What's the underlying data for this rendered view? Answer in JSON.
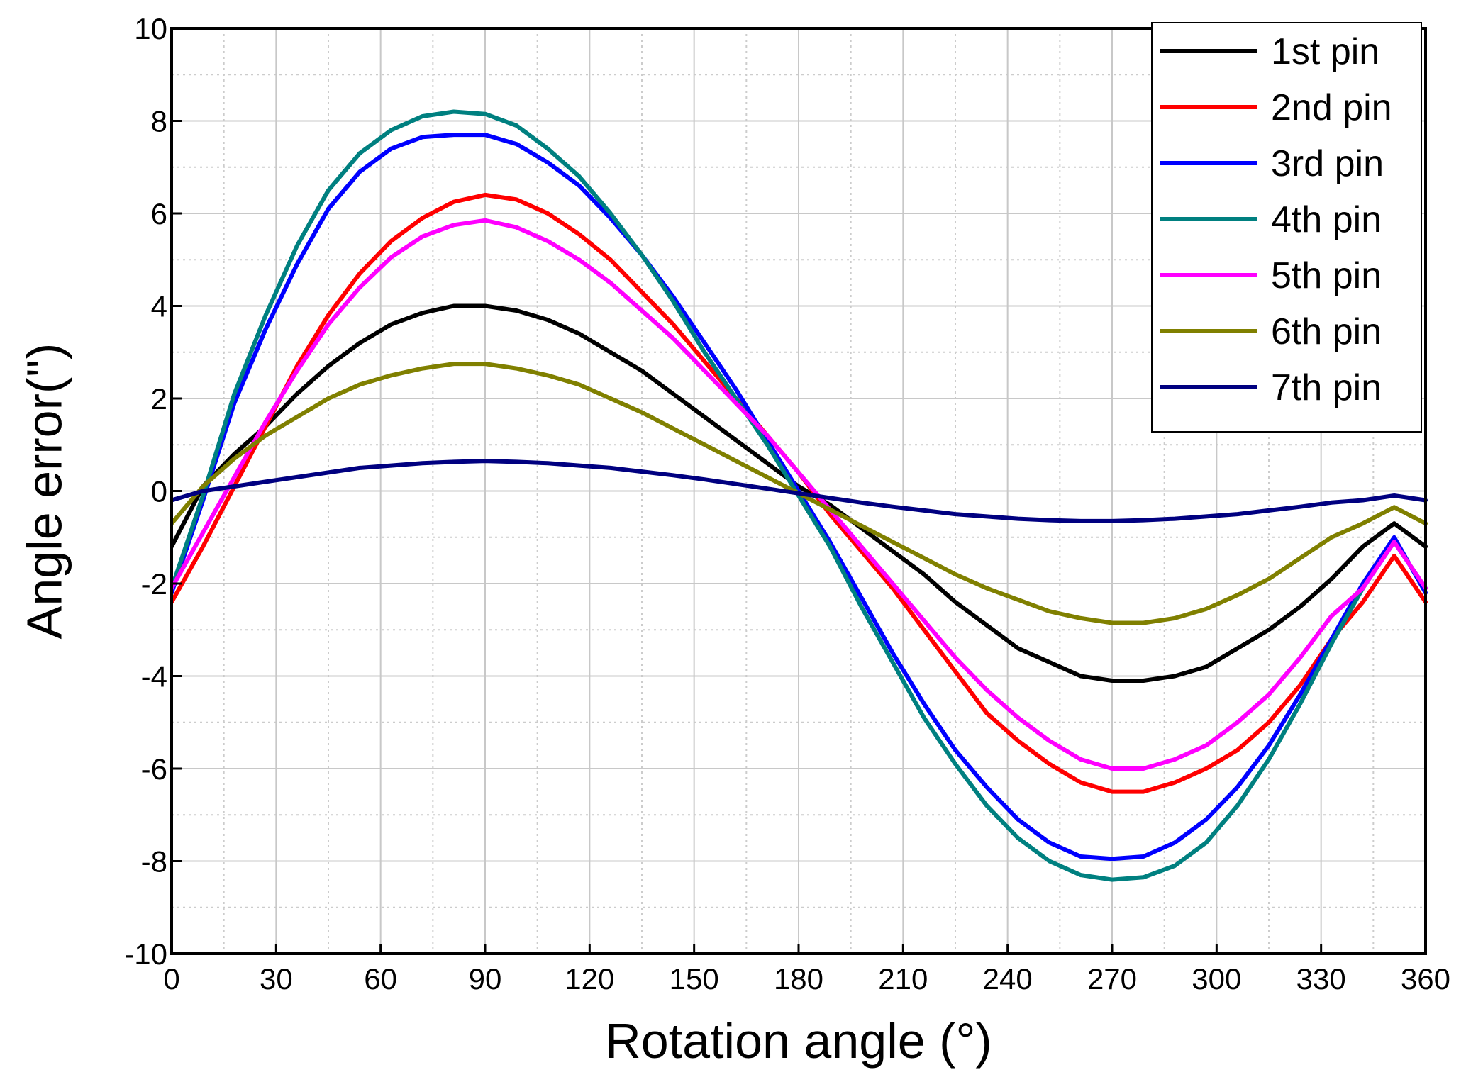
{
  "chart_data": {
    "type": "line",
    "title": "",
    "xlabel": "Rotation angle (°)",
    "ylabel": "Angle error(\")",
    "xlim": [
      0,
      360
    ],
    "ylim": [
      -10,
      10
    ],
    "xticks": [
      0,
      30,
      60,
      90,
      120,
      150,
      180,
      210,
      240,
      270,
      300,
      330,
      360
    ],
    "yticks": [
      -10,
      -8,
      -6,
      -4,
      -2,
      0,
      2,
      4,
      6,
      8,
      10
    ],
    "xtick_labels": [
      "0",
      "30",
      "60",
      "90",
      "120",
      "150",
      "180",
      "210",
      "240",
      "270",
      "300",
      "330",
      "360"
    ],
    "ytick_labels": [
      "-10",
      "-8",
      "-6",
      "-4",
      "-2",
      "0",
      "2",
      "4",
      "6",
      "8",
      "10"
    ],
    "grid": true,
    "legend_position": "top-right",
    "x": [
      0,
      9,
      18,
      27,
      36,
      45,
      54,
      63,
      72,
      81,
      90,
      99,
      108,
      117,
      126,
      135,
      144,
      153,
      162,
      171,
      180,
      189,
      198,
      207,
      216,
      225,
      234,
      243,
      252,
      261,
      270,
      279,
      288,
      297,
      306,
      315,
      324,
      333,
      342,
      351,
      360
    ],
    "series": [
      {
        "name": "1st pin",
        "color": "#000000",
        "values": [
          -1.2,
          0.1,
          0.8,
          1.4,
          2.1,
          2.7,
          3.2,
          3.6,
          3.85,
          4.0,
          4.0,
          3.9,
          3.7,
          3.4,
          3.0,
          2.6,
          2.1,
          1.6,
          1.1,
          0.6,
          0.1,
          -0.3,
          -0.8,
          -1.3,
          -1.8,
          -2.4,
          -2.9,
          -3.4,
          -3.7,
          -4.0,
          -4.1,
          -4.1,
          -4.0,
          -3.8,
          -3.4,
          -3.0,
          -2.5,
          -1.9,
          -1.2,
          -0.7,
          -1.2
        ]
      },
      {
        "name": "2nd pin",
        "color": "#ff0000",
        "values": [
          -2.4,
          -1.2,
          0.1,
          1.4,
          2.7,
          3.8,
          4.7,
          5.4,
          5.9,
          6.25,
          6.4,
          6.3,
          6.0,
          5.55,
          5.0,
          4.3,
          3.6,
          2.8,
          2.0,
          1.2,
          0.4,
          -0.5,
          -1.3,
          -2.1,
          -3.0,
          -3.9,
          -4.8,
          -5.4,
          -5.9,
          -6.3,
          -6.5,
          -6.5,
          -6.3,
          -6.0,
          -5.6,
          -5.0,
          -4.2,
          -3.2,
          -2.4,
          -1.4,
          -2.4
        ]
      },
      {
        "name": "3rd pin",
        "color": "#0000ff",
        "values": [
          -2.2,
          -0.2,
          1.9,
          3.5,
          4.9,
          6.1,
          6.9,
          7.4,
          7.65,
          7.7,
          7.7,
          7.5,
          7.1,
          6.6,
          5.9,
          5.1,
          4.2,
          3.2,
          2.2,
          1.1,
          0.0,
          -1.1,
          -2.3,
          -3.5,
          -4.6,
          -5.6,
          -6.4,
          -7.1,
          -7.6,
          -7.9,
          -7.95,
          -7.9,
          -7.6,
          -7.1,
          -6.4,
          -5.5,
          -4.4,
          -3.2,
          -2.0,
          -1.0,
          -2.2
        ]
      },
      {
        "name": "4th pin",
        "color": "#008080",
        "values": [
          -2.1,
          -0.1,
          2.1,
          3.8,
          5.3,
          6.5,
          7.3,
          7.8,
          8.1,
          8.2,
          8.15,
          7.9,
          7.4,
          6.8,
          6.0,
          5.1,
          4.1,
          3.0,
          2.0,
          1.0,
          -0.1,
          -1.2,
          -2.5,
          -3.7,
          -4.9,
          -5.9,
          -6.8,
          -7.5,
          -8.0,
          -8.3,
          -8.4,
          -8.35,
          -8.1,
          -7.6,
          -6.8,
          -5.8,
          -4.6,
          -3.3,
          -2.1,
          -1.1,
          -2.1
        ]
      },
      {
        "name": "5th pin",
        "color": "#ff00ff",
        "values": [
          -2.1,
          -0.9,
          0.3,
          1.5,
          2.6,
          3.6,
          4.4,
          5.05,
          5.5,
          5.75,
          5.85,
          5.7,
          5.4,
          5.0,
          4.5,
          3.9,
          3.3,
          2.6,
          1.9,
          1.2,
          0.4,
          -0.4,
          -1.2,
          -2.0,
          -2.8,
          -3.6,
          -4.3,
          -4.9,
          -5.4,
          -5.8,
          -6.0,
          -6.0,
          -5.8,
          -5.5,
          -5.0,
          -4.4,
          -3.6,
          -2.7,
          -2.1,
          -1.1,
          -2.1
        ]
      },
      {
        "name": "6th pin",
        "color": "#808000",
        "values": [
          -0.7,
          0.1,
          0.7,
          1.2,
          1.6,
          2.0,
          2.3,
          2.5,
          2.65,
          2.75,
          2.75,
          2.65,
          2.5,
          2.3,
          2.0,
          1.7,
          1.35,
          1.0,
          0.65,
          0.3,
          -0.05,
          -0.4,
          -0.75,
          -1.1,
          -1.45,
          -1.8,
          -2.1,
          -2.35,
          -2.6,
          -2.75,
          -2.85,
          -2.85,
          -2.75,
          -2.55,
          -2.25,
          -1.9,
          -1.45,
          -1.0,
          -0.7,
          -0.35,
          -0.7
        ]
      },
      {
        "name": "7th pin",
        "color": "#000080",
        "values": [
          -0.2,
          0.0,
          0.1,
          0.2,
          0.3,
          0.4,
          0.5,
          0.55,
          0.6,
          0.63,
          0.65,
          0.63,
          0.6,
          0.55,
          0.5,
          0.42,
          0.34,
          0.25,
          0.15,
          0.05,
          -0.05,
          -0.15,
          -0.25,
          -0.34,
          -0.42,
          -0.5,
          -0.55,
          -0.6,
          -0.63,
          -0.65,
          -0.65,
          -0.63,
          -0.6,
          -0.55,
          -0.5,
          -0.42,
          -0.34,
          -0.25,
          -0.2,
          -0.1,
          -0.2
        ]
      }
    ]
  }
}
